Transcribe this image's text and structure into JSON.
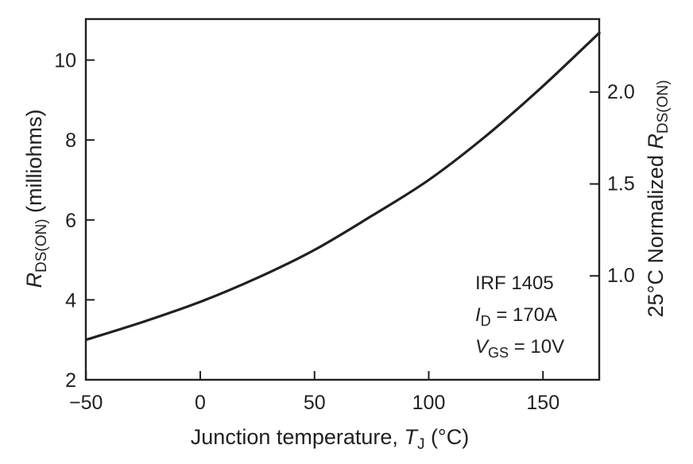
{
  "chart_data": {
    "type": "line",
    "xlabel": {
      "main": "Junction temperature, ",
      "var": "T",
      "sub": "J",
      "unit": " (°C)"
    },
    "ylabel_left": {
      "var": "R",
      "sub": "DS(ON)",
      "unit": " (milliohms)"
    },
    "ylabel_right": {
      "prefix": "25°C Normalized ",
      "var": "R",
      "sub": "DS(ON)"
    },
    "xlim": [
      -50,
      175
    ],
    "ylim": [
      2,
      11
    ],
    "x_ticks": [
      -50,
      0,
      50,
      100,
      150
    ],
    "x_tick_labels": [
      "−50",
      "0",
      "50",
      "100",
      "150"
    ],
    "y_ticks": [
      2,
      4,
      6,
      8,
      10
    ],
    "y_tick_labels": [
      "2",
      "4",
      "6",
      "8",
      "10"
    ],
    "y2_ticks": [
      1.0,
      1.5,
      2.0
    ],
    "y2_tick_labels": [
      "1.0",
      "1.5",
      "2.0"
    ],
    "y2_scale_ref": 4.6,
    "grid": false,
    "series": [
      {
        "x": [
          -50,
          -25,
          0,
          25,
          50,
          75,
          100,
          125,
          150,
          175
        ],
        "y": [
          3.0,
          3.45,
          3.95,
          4.55,
          5.25,
          6.1,
          7.0,
          8.1,
          9.35,
          10.7
        ]
      }
    ],
    "annotation": {
      "line1": "IRF 1405",
      "line2": {
        "var": "I",
        "sub": "D",
        "rest": " = 170A"
      },
      "line3": {
        "var": "V",
        "sub": "GS",
        "rest": " = 10V"
      }
    }
  }
}
